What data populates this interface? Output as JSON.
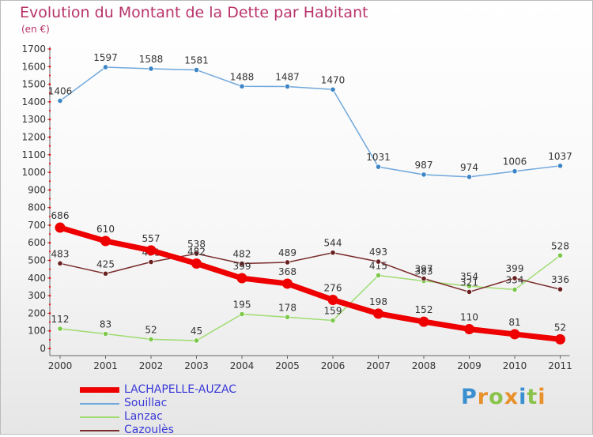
{
  "header": {
    "title": "Evolution du Montant de la Dette par Habitant",
    "subtitle": "(en €)"
  },
  "logo": {
    "text": "Proxiti"
  },
  "chart_data": {
    "type": "line",
    "title": "Evolution du Montant de la Dette par Habitant",
    "subtitle": "(en €)",
    "xlabel": "",
    "ylabel": "",
    "categories": [
      "2000",
      "2001",
      "2002",
      "2003",
      "2004",
      "2005",
      "2006",
      "2007",
      "2008",
      "2009",
      "2010",
      "2011"
    ],
    "ylim": [
      0,
      1700
    ],
    "yticks": [
      0,
      100,
      200,
      300,
      400,
      500,
      600,
      700,
      800,
      900,
      1000,
      1100,
      1200,
      1300,
      1400,
      1500,
      1600,
      1700
    ],
    "grid": false,
    "legend": "bottom-left",
    "series": [
      {
        "name": "Souillac",
        "color": "#6fa8dc",
        "marker": "#3d85c6",
        "width": 1.5,
        "values": [
          1406,
          1597,
          1588,
          1581,
          1488,
          1487,
          1470,
          1031,
          987,
          974,
          1006,
          1037
        ]
      },
      {
        "name": "Lanzac",
        "color": "#9fdc70",
        "marker": "#7cc84a",
        "width": 1.5,
        "values": [
          112,
          83,
          52,
          45,
          195,
          178,
          159,
          415,
          383,
          354,
          334,
          528
        ]
      },
      {
        "name": "Cazoulès",
        "color": "#7a2b2b",
        "marker": "#6a1f1f",
        "width": 1.5,
        "values": [
          483,
          425,
          491,
          538,
          482,
          489,
          544,
          493,
          397,
          321,
          399,
          336
        ]
      },
      {
        "name": "LACHAPELLE-AUZAC",
        "color": "#ee0000",
        "marker": "#ee0000",
        "width": 7,
        "values": [
          686,
          610,
          557,
          482,
          399,
          368,
          276,
          198,
          152,
          110,
          81,
          52
        ]
      }
    ],
    "legend_order": [
      "LACHAPELLE-AUZAC",
      "Souillac",
      "Lanzac",
      "Cazoulès"
    ]
  }
}
